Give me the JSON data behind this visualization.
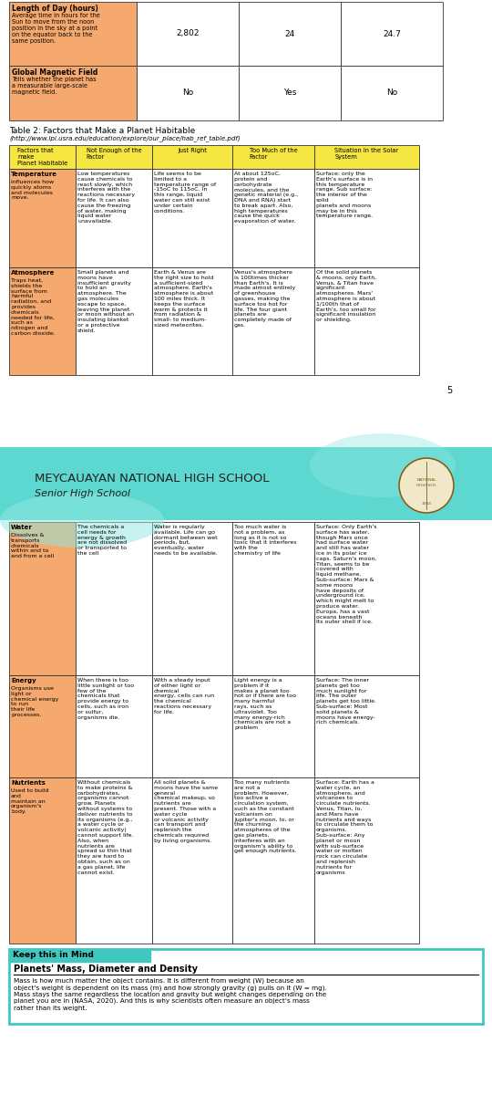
{
  "page_bg": "#ffffff",
  "teal_bg": "#5dd8d0",
  "orange_header": "#f5a96e",
  "yellow_header": "#f5e642",
  "table1_rows": [
    {
      "label_bold": "Length of Day (hours)",
      "label_text": "Average time in hours for the\nSun to move from the noon\nposition in the sky at a point\non the equator back to the\nsame position.",
      "col1": "2,802",
      "col2": "24",
      "col3": "24.7"
    },
    {
      "label_bold": "Global Magnetic Field",
      "label_text": "Tells whether the planet has\na measurable large-scale\nmagnetic field.",
      "col1": "No",
      "col2": "Yes",
      "col3": "No"
    }
  ],
  "table2_title": "Table 2: Factors that Make a Planet Habitable",
  "table2_url": "(http://www.lpi.usra.edu/education/explore/our_place/hab_ref_table.pdf)",
  "table2_headers": [
    "Factors that\nmake\nPlanet Habitable",
    "Not Enough of the\nFactor",
    "Just Right",
    "Too Much of the\nFactor",
    "Situation in the Solar\nSystem"
  ],
  "table2_rows": [
    {
      "factor_bold": "Temperature",
      "factor_text": "influences how\nquickly atoms\nand molecules\nmove.",
      "not_enough": "Low temperatures\ncause chemicals to\nreact slowly, which\ninterferes with the\nreactions necessary\nfor life. It can also\ncause the freezing\nof water, making\nliquid water\nunavailable.",
      "just_right": "Life seems to be\nlimited to a\ntemperature range of\n-15oC to 115oC. In\nthis range, liquid\nwater can still exist\nunder certain\nconditions.",
      "too_much": "At about 125oC,\nprotein and\ncarbohydrate\nmolecules, and the\ngenetic material (e.g.,\nDNA and RNA) start\nto break apart. Also,\nhigh temperatures\ncause the quick\nevaporation of water.",
      "situation": "Surface: only the\nEarth's surface is in\nthis temperature\nrange. Sub surface:\nthe interior of the\nsolid\nplanets and moons\nmay be in this\ntemperature range."
    },
    {
      "factor_bold": "Atmosphere",
      "factor_text": "Traps heat,\nshields the\nsurface from\nharmful\nradiation, and\nprovides\nchemicals\nneeded for life,\nsuch as\nnitrogen and\ncarbon dioxide.",
      "not_enough": "Small planets and\nmoons have\ninsufficient gravity\nto hold an\natmosphere. The\ngas molecules\nescape to space,\nleaving the planet\nor moon without an\ninsulating blanket\nor a protective\nshield.",
      "just_right": "Earth & Venus are\nthe right size to hold\na sufficient-sized\natmosphere. Earth's\natmosphere is about\n100 miles thick. It\nkeeps the surface\nwarm & protects it\nfrom radiation &\nsmall- to medium-\nsized meteorites.",
      "too_much": "Venus's atmosphere\nis 100times thicker\nthan Earth's. It is\nmade almost entirely\nof greenhouse\ngasses, making the\nsurface too hot for\nlife. The four giant\nplanets are\ncompletely made of\ngas.",
      "situation": "Of the solid planets\n& moons, only Earth,\nVenus, & Titan have\nsignificant\natmospheres. Mars'\natmosphere is about\n1/100th that of\nEarth's, too small for\nsignificant insulation\nor shielding."
    }
  ],
  "page_number": "5",
  "school_name": "MEYCAUAYAN NATIONAL HIGH SCHOOL",
  "school_subtitle": "Senior High School",
  "table3_rows": [
    {
      "factor_bold": "Water",
      "factor_text": "Dissolves &\ntransports\nchemicals\nwithin and to\nand from a cell",
      "not_enough": "The chemicals a\ncell needs for\nenergy & growth\nare not dissolved\nor transported to\nthe cell",
      "just_right": "Water is regularly\navailable. Life can go\ndormant between wet\nperiods, but,\neventually, water\nneeds to be available.",
      "too_much": "Too much water is\nnot a problem, as\nlong as it is not so\ntoxic that it interferes\nwith the\nchemistry of life",
      "situation": "Surface: Only Earth's\nsurface has water,\nthough Mars once\nhad surface water\nand still has water\nice in its polar ice\ncaps. Saturn's moon,\nTitan, seems to be\ncovered with\nliquid methane.\nSub-surface: Mars &\nsome moons\nhave deposits of\nunderground ice,\nwhich might melt to\nproduce water.\nEuropa, has a vast\noceans beneath\nits outer shell if ice."
    },
    {
      "factor_bold": "Energy",
      "factor_text": "Organisms use\nlight or\nchemical energy\nto run\ntheir life\nprocesses.",
      "not_enough": "When there is too\nlittle sunlight or too\nfew of the\nchemicals that\nprovide energy to\ncells, such as iron\nor sulfur,\norganisms die.",
      "just_right": "With a steady input\nof either light or\nchemical\nenergy, cells can run\nthe chemical\nreactions necessary\nfor life.",
      "too_much": "Light energy is a\nproblem if it\nmakes a planet too\nhot or if there are too\nmany harmful\nrays, such as\nultraviolet. Too\nmany energy-rich\nchemicals are not a\nproblem",
      "situation": "Surface: The inner\nplanets get too\nmuch sunlight for\nlife. The outer\nplanets get too little.\nSub-surface: Most\nsolid planets &\nmoons have energy-\nrich chemicals."
    },
    {
      "factor_bold": "Nutrients",
      "factor_text": "Used to build\nand\nmaintain an\norganism's\nbody.",
      "not_enough": "Without chemicals\nto make proteins &\ncarbohydrates,\norganisms cannot\ngrow. Planets\nwithout systems to\ndeliver nutrients to\nits organisms (e.g.,\na water cycle or\nvolcanic activity)\ncannot support life.\nAlso, when\nnutrients are\nspread so thin that\nthey are hard to\nobtain, such as on\na gas planet, life\ncannot exist.",
      "just_right": "All solid planets &\nmoons have the same\ngeneral\nchemical makeup, so\nnutrients are\npresent. Those with a\nwater cycle\nor volcanic activity\ncan transport and\nreplenish the\nchemicals required\nby living organisms.",
      "too_much": "Too many nutrients\nare not a\nproblem. However,\ntoo active a\ncirculation system,\nsuch as the constant\nvolcanism on\nJupiter's moon, Io, or\nthe churning\natmospheres of the\ngas planets,\ninterferes with an\norganism's ability to\nget enough nutrients.",
      "situation": "Surface: Earth has a\nwater cycle, an\natmosphere, and\nvolcanoes to\ncirculate nutrients.\nVenus, Titan, Io,\nand Mars have\nnutrients and ways\nto circulate them to\norganisms.\nSub-surface: Any\nplanet or moon\nwith sub-surface\nwater or molten\nrock can circulate\nand replenish\nnutrients for\norganisms"
    }
  ],
  "keep_this_in_mind_title": "Keep this in Mind",
  "planets_section_title": "Planets' Mass, Diameter and Density",
  "planets_section_text": "Mass is how much matter the object contains. It is different from weight (W) because an\nobject's weight is dependent on its mass (m) and how strongly gravity (g) pulls on it (W = mg).\nMass stays the same regardless the location and gravity but weight changes depending on the\nplanet you are in (NASA, 2020). And this is why scientists often measure an object's mass\nrather than its weight."
}
